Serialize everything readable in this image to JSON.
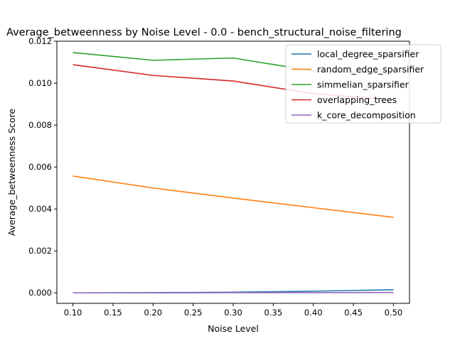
{
  "chart_data": {
    "type": "line",
    "title": "Average_betweenness by Noise Level - 0.0 - bench_structural_noise_filtering",
    "xlabel": "Noise Level",
    "ylabel": "Average_betweenness Score",
    "x": [
      0.1,
      0.2,
      0.3,
      0.4,
      0.5
    ],
    "xlim": [
      0.08,
      0.52
    ],
    "ylim": [
      -0.0005,
      0.012
    ],
    "x_ticks": [
      "0.10",
      "0.15",
      "0.20",
      "0.25",
      "0.30",
      "0.35",
      "0.40",
      "0.45",
      "0.50"
    ],
    "y_ticks": [
      "0.000",
      "0.002",
      "0.004",
      "0.006",
      "0.008",
      "0.010",
      "0.012"
    ],
    "grid": false,
    "legend_position": "top-right",
    "series": [
      {
        "name": "local_degree_sparsifier",
        "color": "#1f77b4",
        "values": [
          0.0,
          1e-05,
          3e-05,
          8e-05,
          0.00015
        ]
      },
      {
        "name": "random_edge_sparsifier",
        "color": "#ff7f0e",
        "values": [
          0.00557,
          0.005,
          0.00452,
          0.00406,
          0.0036
        ]
      },
      {
        "name": "simmelian_sparsifier",
        "color": "#2ca02c",
        "values": [
          0.01146,
          0.01109,
          0.0112,
          0.01058,
          0.01045
        ]
      },
      {
        "name": "overlapping_trees",
        "color": "#d62728",
        "values": [
          0.01088,
          0.01037,
          0.0101,
          0.0095,
          0.0092
        ]
      },
      {
        "name": "k_core_decomposition",
        "color": "#9467bd",
        "values": [
          0.0,
          0.0,
          1e-05,
          1e-05,
          2e-05
        ]
      }
    ]
  }
}
